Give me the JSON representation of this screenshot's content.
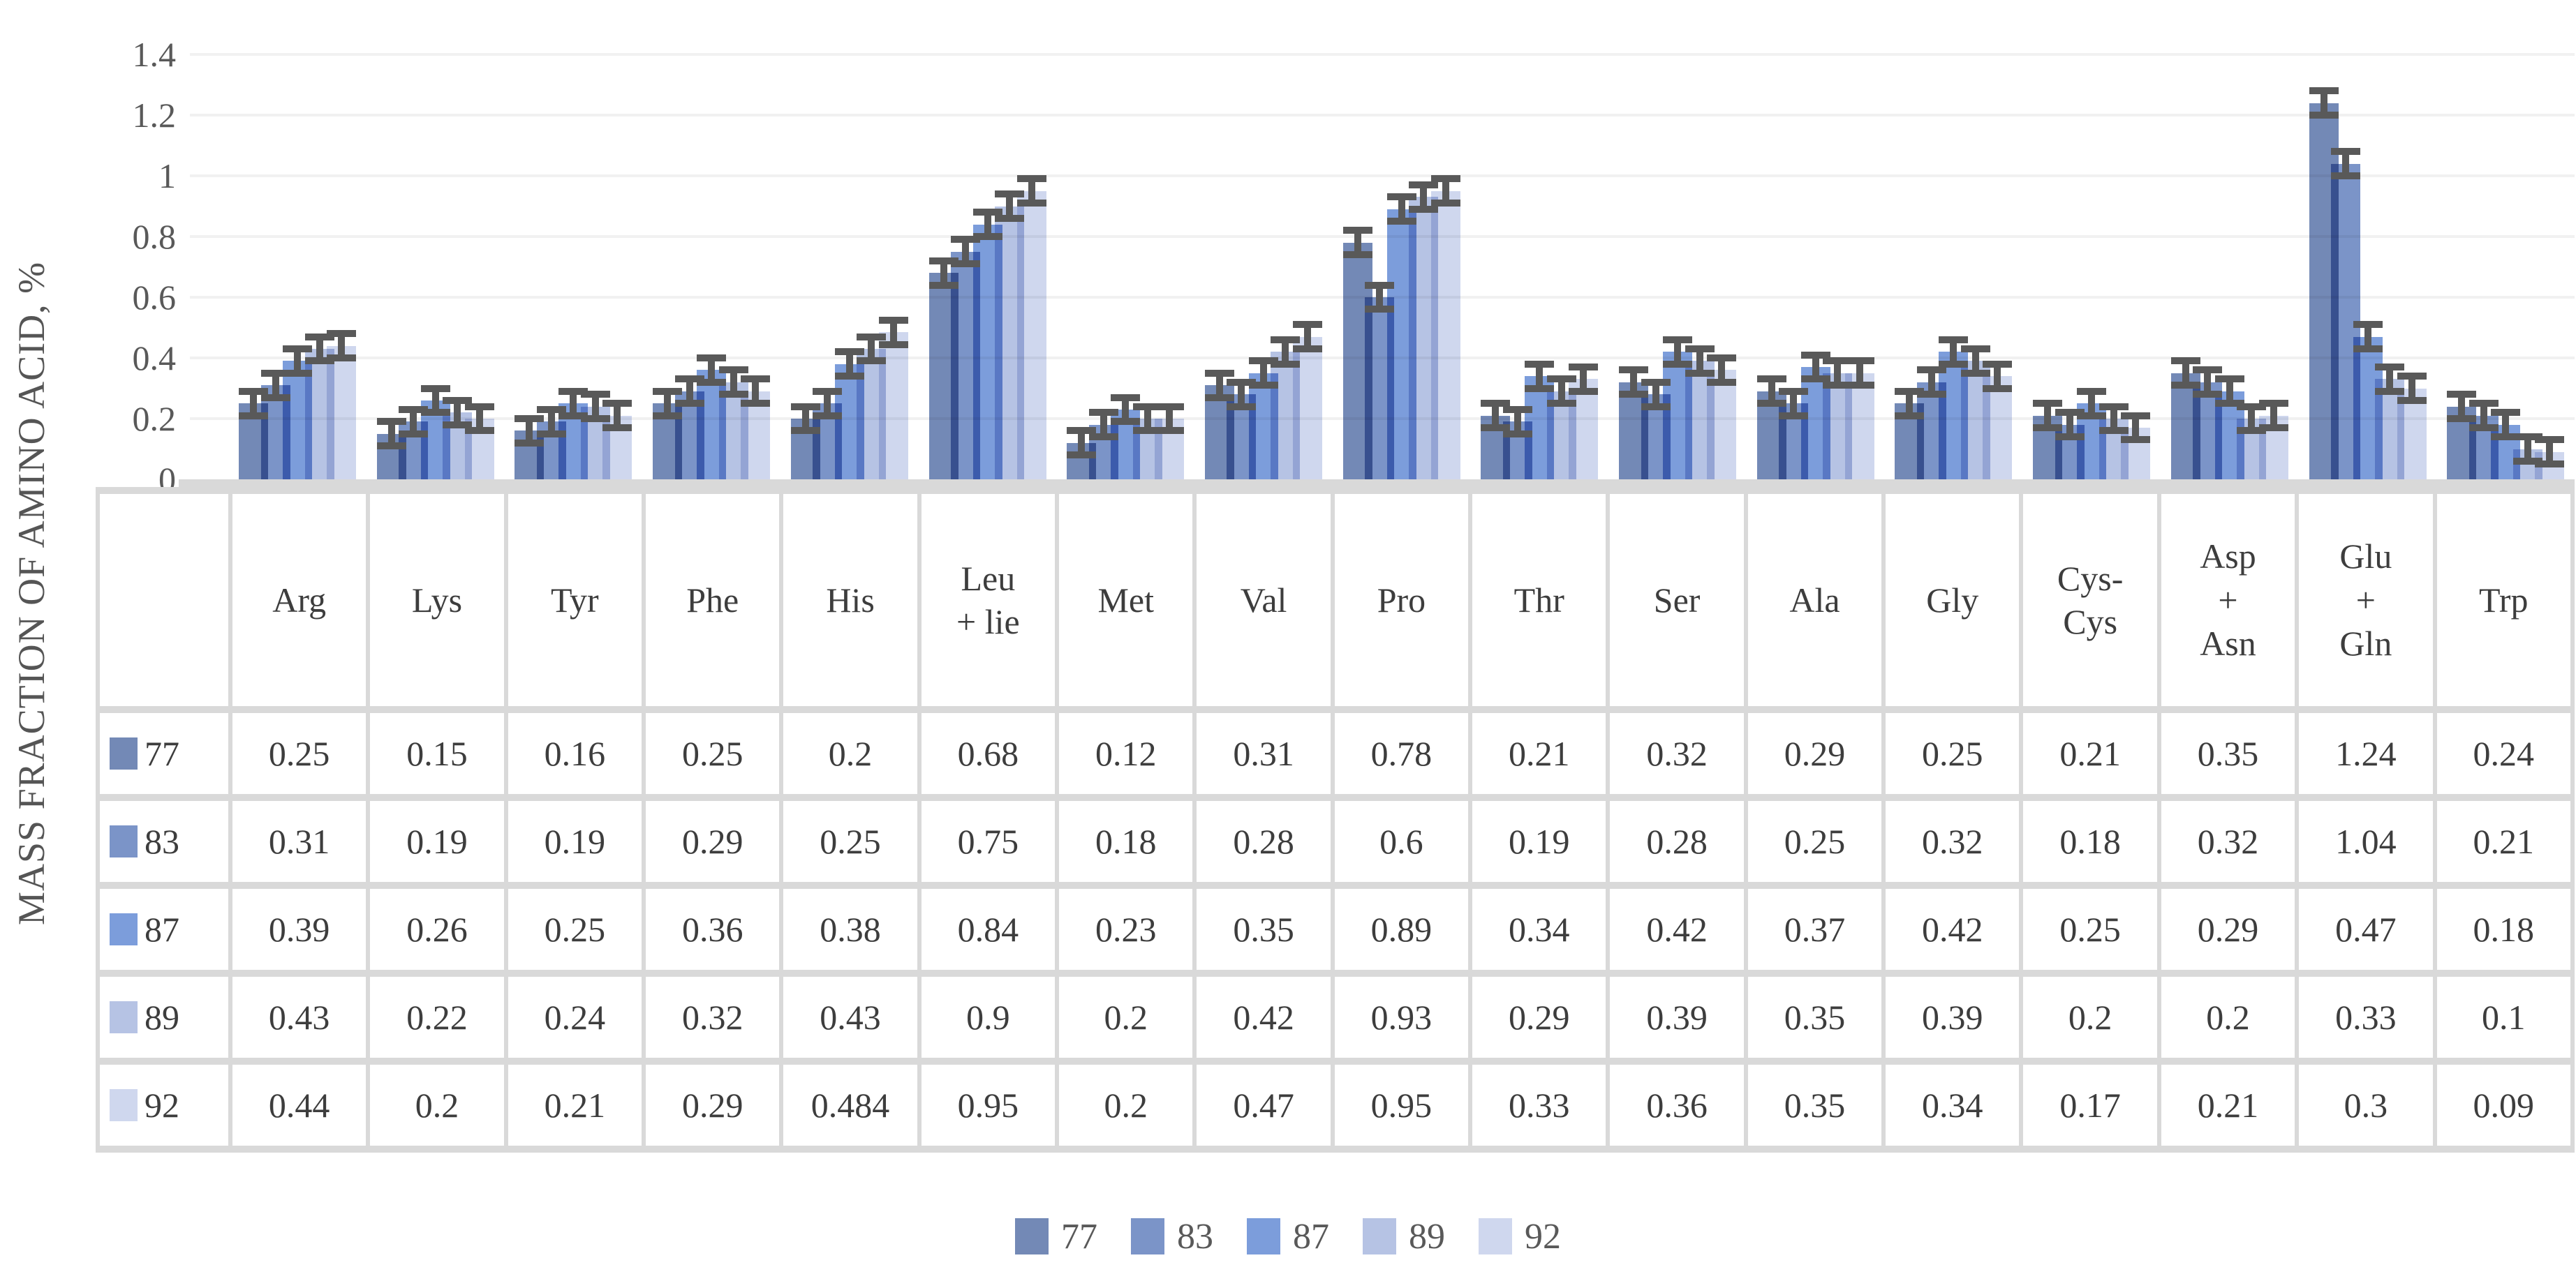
{
  "chart_data": {
    "type": "bar",
    "title": "",
    "ylabel": "MASS FRACTION OF AMINO ACID, %",
    "xlabel": "",
    "ylim": [
      0,
      1.4
    ],
    "ytick_step": 0.2,
    "ytick_labels_top_down": [
      "1.4",
      "1.2",
      "1",
      "0.8",
      "0.6",
      "0.4",
      "0.2",
      "0"
    ],
    "grid": true,
    "legend_position": "bottom",
    "data_table_shown": true,
    "categories": [
      "Arg",
      "Lys",
      "Tyr",
      "Phe",
      "His",
      "Leu + lie",
      "Met",
      "Val",
      "Pro",
      "Thr",
      "Ser",
      "Ala",
      "Gly",
      "Cys-Cys",
      "Asp + Asn",
      "Glu + Gln",
      "Trp"
    ],
    "categories_display": [
      "Arg",
      "Lys",
      "Tyr",
      "Phe",
      "His",
      "Leu\n+ lie",
      "Met",
      "Val",
      "Pro",
      "Thr",
      "Ser",
      "Ala",
      "Gly",
      "Cys-\nCys",
      "Asp\n+\nAsn",
      "Glu\n+\nGln",
      "Trp"
    ],
    "series": [
      {
        "name": "77",
        "color": "#7389B6",
        "values": [
          0.25,
          0.15,
          0.16,
          0.25,
          0.2,
          0.68,
          0.12,
          0.31,
          0.78,
          0.21,
          0.32,
          0.29,
          0.25,
          0.21,
          0.35,
          1.24,
          0.24
        ]
      },
      {
        "name": "83",
        "color": "#7B94C8",
        "values": [
          0.31,
          0.19,
          0.19,
          0.29,
          0.25,
          0.75,
          0.18,
          0.28,
          0.6,
          0.19,
          0.28,
          0.25,
          0.32,
          0.18,
          0.32,
          1.04,
          0.21
        ]
      },
      {
        "name": "87",
        "color": "#7C9DDB",
        "values": [
          0.39,
          0.26,
          0.25,
          0.36,
          0.38,
          0.84,
          0.23,
          0.35,
          0.89,
          0.34,
          0.42,
          0.37,
          0.42,
          0.25,
          0.29,
          0.47,
          0.18
        ]
      },
      {
        "name": "89",
        "color": "#B6C3E4",
        "values": [
          0.43,
          0.22,
          0.24,
          0.32,
          0.43,
          0.9,
          0.2,
          0.42,
          0.93,
          0.29,
          0.39,
          0.35,
          0.39,
          0.2,
          0.2,
          0.33,
          0.1
        ]
      },
      {
        "name": "92",
        "color": "#CFD7EE",
        "values": [
          0.44,
          0.2,
          0.21,
          0.29,
          0.484,
          0.95,
          0.2,
          0.47,
          0.95,
          0.33,
          0.36,
          0.35,
          0.34,
          0.17,
          0.21,
          0.3,
          0.09
        ]
      }
    ],
    "error_bars": {
      "visible": true,
      "approx_plus_minus": 0.04,
      "color": "#595959"
    },
    "data_table": {
      "rows_text": [
        [
          "0.25",
          "0.15",
          "0.16",
          "0.25",
          "0.2",
          "0.68",
          "0.12",
          "0.31",
          "0.78",
          "0.21",
          "0.32",
          "0.29",
          "0.25",
          "0.21",
          "0.35",
          "1.24",
          "0.24"
        ],
        [
          "0.31",
          "0.19",
          "0.19",
          "0.29",
          "0.25",
          "0.75",
          "0.18",
          "0.28",
          "0.6",
          "0.19",
          "0.28",
          "0.25",
          "0.32",
          "0.18",
          "0.32",
          "1.04",
          "0.21"
        ],
        [
          "0.39",
          "0.26",
          "0.25",
          "0.36",
          "0.38",
          "0.84",
          "0.23",
          "0.35",
          "0.89",
          "0.34",
          "0.42",
          "0.37",
          "0.42",
          "0.25",
          "0.29",
          "0.47",
          "0.18"
        ],
        [
          "0.43",
          "0.22",
          "0.24",
          "0.32",
          "0.43",
          "0.9",
          "0.2",
          "0.42",
          "0.93",
          "0.29",
          "0.39",
          "0.35",
          "0.39",
          "0.2",
          "0.2",
          "0.33",
          "0.1"
        ],
        [
          "0.44",
          "0.2",
          "0.21",
          "0.29",
          "0.484",
          "0.95",
          "0.2",
          "0.47",
          "0.95",
          "0.33",
          "0.36",
          "0.35",
          "0.34",
          "0.17",
          "0.21",
          "0.3",
          "0.09"
        ]
      ]
    }
  }
}
